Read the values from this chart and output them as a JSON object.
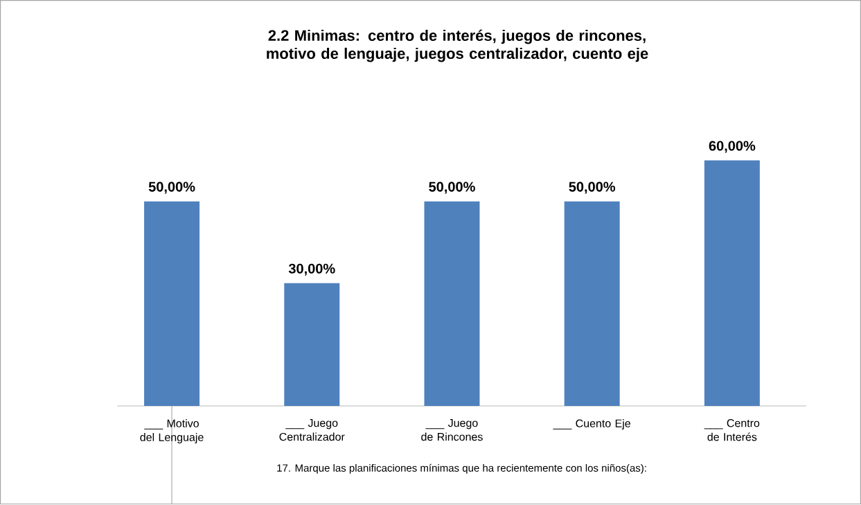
{
  "chart_data": {
    "type": "bar",
    "title": "2.2 Minimas: centro de interés, juegos de rincones, motivo de lenguaje, juegos centralizador, cuento eje",
    "xlabel": "17. Marque las planificaciones mínimas que ha recientemente con los niños(as):",
    "categories": [
      "___ Motivo del Lenguaje",
      "___ Juego Centralizador",
      "___ Juego de Rincones",
      "___ Cuento Eje",
      "___ Centro de Interés"
    ],
    "values": [
      50,
      30,
      50,
      50,
      60
    ],
    "value_labels": [
      "50,00%",
      "30,00%",
      "50,00%",
      "50,00%",
      "60,00%"
    ],
    "color": "#4f81bd"
  }
}
